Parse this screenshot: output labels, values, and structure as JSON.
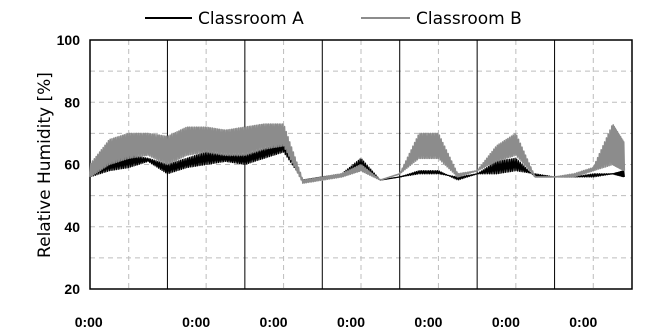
{
  "chart_data": {
    "type": "line",
    "title": "",
    "xlabel": "",
    "ylabel": "Relative Humidity [%]",
    "ylim": [
      20,
      100
    ],
    "yticks": [
      20,
      40,
      60,
      80,
      100
    ],
    "xticks": [
      "0:00",
      "0:00",
      "0:00",
      "0:00",
      "0:00",
      "0:00",
      "0:00"
    ],
    "xlim": [
      0,
      7
    ],
    "grid": true,
    "legend_position": "top",
    "series": [
      {
        "name": "Classroom A",
        "color": "#000000",
        "x": [
          0.0,
          0.25,
          0.5,
          0.75,
          1.0,
          1.25,
          1.5,
          1.75,
          2.0,
          2.25,
          2.5,
          2.75,
          3.0,
          3.25,
          3.5,
          3.75,
          4.0,
          4.25,
          4.5,
          4.75,
          5.0,
          5.25,
          5.5,
          5.75,
          6.0,
          6.25,
          6.5,
          6.75,
          6.9
        ],
        "values": [
          56,
          58,
          59,
          61,
          57,
          59,
          60,
          61,
          60,
          62,
          64,
          55,
          56,
          56,
          58,
          55,
          56,
          57,
          57,
          56,
          57,
          57,
          58,
          57,
          56,
          56,
          56,
          57,
          56
        ],
        "band_values": [
          58,
          61,
          63,
          62,
          60,
          62,
          64,
          63,
          63,
          65,
          67,
          55,
          56,
          57,
          62,
          55,
          56,
          58,
          58,
          55,
          57,
          61,
          62,
          56,
          56,
          56,
          57,
          57,
          58
        ]
      },
      {
        "name": "Classroom B",
        "color": "#8c8c8c",
        "x": [
          0.0,
          0.25,
          0.5,
          0.75,
          1.0,
          1.25,
          1.5,
          1.75,
          2.0,
          2.25,
          2.5,
          2.75,
          3.0,
          3.25,
          3.5,
          3.75,
          4.0,
          4.25,
          4.5,
          4.75,
          5.0,
          5.25,
          5.5,
          5.75,
          6.0,
          6.25,
          6.5,
          6.75,
          6.9
        ],
        "values": [
          56,
          60,
          62,
          63,
          60,
          63,
          64,
          63,
          63,
          65,
          66,
          54,
          55,
          56,
          58,
          55,
          57,
          62,
          62,
          56,
          58,
          61,
          63,
          56,
          56,
          56,
          58,
          60,
          58
        ],
        "band_values": [
          60,
          68,
          70,
          70,
          69,
          72,
          72,
          71,
          72,
          73,
          73,
          55,
          56,
          57,
          60,
          55,
          57,
          70,
          70,
          57,
          58,
          66,
          70,
          56,
          56,
          57,
          59,
          73,
          67
        ]
      }
    ]
  }
}
